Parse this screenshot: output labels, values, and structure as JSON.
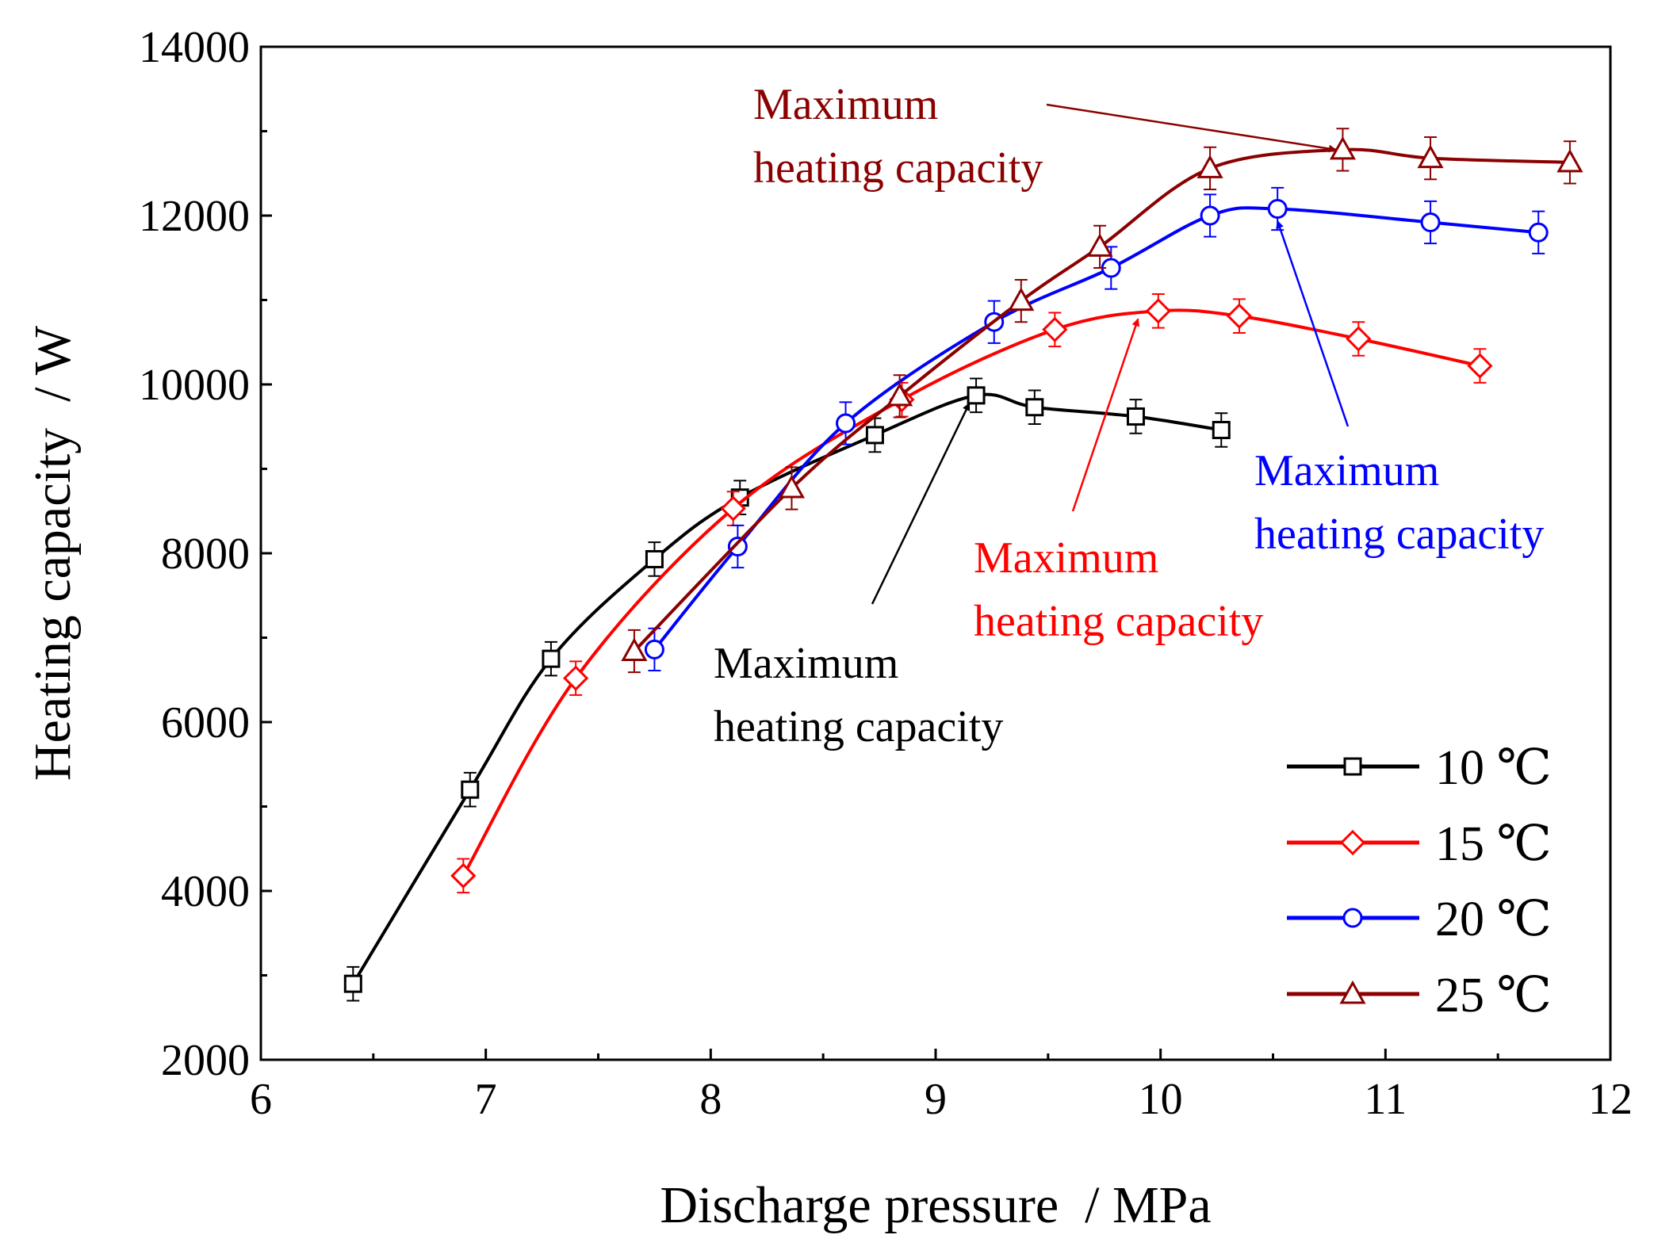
{
  "chart_data": {
    "type": "line",
    "title": "",
    "xlabel": "Discharge pressure  / MPa",
    "ylabel": "Heating capacity  / W",
    "xlim": [
      6,
      12
    ],
    "ylim": [
      2000,
      14000
    ],
    "xticks": [
      6,
      7,
      8,
      9,
      10,
      11,
      12
    ],
    "yticks": [
      2000,
      4000,
      6000,
      8000,
      10000,
      12000,
      14000
    ],
    "grid": false,
    "legend_position": "bottom-right",
    "series": [
      {
        "name": "10 ℃",
        "color": "#000000",
        "marker": "square",
        "x": [
          6.41,
          6.93,
          7.29,
          7.75,
          8.13,
          8.73,
          9.18,
          9.44,
          9.89,
          10.27
        ],
        "y": [
          2900,
          5200,
          6750,
          7930,
          8660,
          9400,
          9870,
          9730,
          9620,
          9460
        ],
        "error": 200
      },
      {
        "name": "15 ℃",
        "color": "#ff0000",
        "marker": "diamond",
        "x": [
          6.9,
          7.4,
          8.1,
          8.85,
          9.53,
          9.99,
          10.35,
          10.88,
          11.42
        ],
        "y": [
          4180,
          6520,
          8530,
          9820,
          10650,
          10870,
          10810,
          10540,
          10220
        ],
        "error": 200
      },
      {
        "name": "20 ℃",
        "color": "#0000ff",
        "marker": "circle",
        "x": [
          7.75,
          8.12,
          8.6,
          9.26,
          9.78,
          10.22,
          10.52,
          11.2,
          11.68
        ],
        "y": [
          6860,
          8080,
          9540,
          10740,
          11380,
          12000,
          12080,
          11920,
          11800
        ],
        "error": 250
      },
      {
        "name": "25 ℃",
        "color": "#8b0000",
        "marker": "triangle",
        "x": [
          7.66,
          8.36,
          8.84,
          9.38,
          9.73,
          10.22,
          10.81,
          11.2,
          11.82
        ],
        "y": [
          6840,
          8770,
          9860,
          10990,
          11630,
          12560,
          12780,
          12680,
          12630
        ],
        "error": 250
      }
    ],
    "annotations": [
      {
        "line1": "Maximum",
        "line2": "heating capacity",
        "color": "#000000",
        "point_to": [
          9.15,
          9870
        ]
      },
      {
        "line1": "Maximum",
        "line2": "heating capacity",
        "color": "#ff0000",
        "point_to": [
          9.9,
          10870
        ]
      },
      {
        "line1": "Maximum",
        "line2": "heating capacity",
        "color": "#0000ff",
        "point_to": [
          10.52,
          12030
        ]
      },
      {
        "line1": "Maximum",
        "line2": "heating capacity",
        "color": "#8b0000",
        "point_to": [
          10.78,
          12780
        ]
      }
    ]
  }
}
